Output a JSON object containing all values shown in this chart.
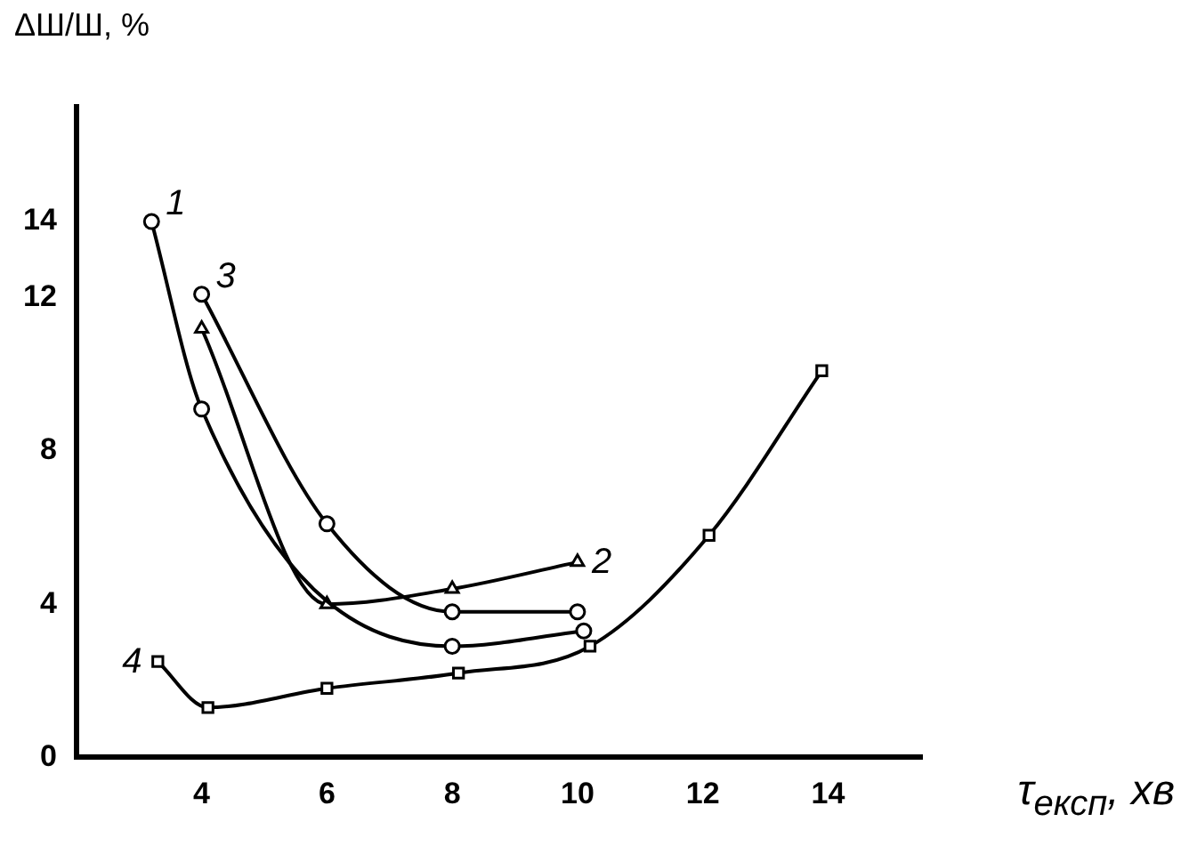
{
  "chart_data": {
    "type": "line",
    "xlabel": "τ$_{експ}$, хв",
    "ylabel": "ΔШ/Ш, %",
    "xlim": [
      2,
      15.5
    ],
    "ylim": [
      0,
      17
    ],
    "xticks": [
      4,
      6,
      8,
      10,
      12,
      14
    ],
    "yticks": [
      0,
      4,
      8,
      12,
      14
    ],
    "grid": false,
    "legend": false,
    "series": [
      {
        "name": "1",
        "color": "#000000",
        "marker": "circle",
        "x": [
          3.2,
          4,
          8,
          10.1
        ],
        "values": [
          14,
          9.1,
          2.9,
          3.3
        ]
      },
      {
        "name": "2",
        "color": "#000000",
        "marker": "triangle",
        "x": [
          4,
          6,
          8,
          10
        ],
        "values": [
          11.2,
          4,
          4.4,
          5.1
        ]
      },
      {
        "name": "3",
        "color": "#000000",
        "marker": "circle",
        "x": [
          4,
          6,
          8,
          10
        ],
        "values": [
          12.1,
          6.1,
          3.8,
          3.8
        ]
      },
      {
        "name": "4",
        "color": "#000000",
        "marker": "square",
        "x": [
          3.3,
          4.1,
          6,
          8.1,
          10.2,
          12.1,
          13.9
        ],
        "values": [
          2.5,
          1.3,
          1.8,
          2.2,
          2.9,
          5.8,
          10.1
        ]
      }
    ]
  }
}
